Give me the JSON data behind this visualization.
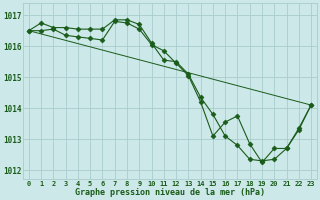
{
  "title": "Graphe pression niveau de la mer (hPa)",
  "bg_color": "#cce8e8",
  "grid_color": "#aacccc",
  "line_color": "#1a5c1a",
  "marker_color": "#1a5c1a",
  "x_ticks": [
    0,
    1,
    2,
    3,
    4,
    5,
    6,
    7,
    8,
    9,
    10,
    11,
    12,
    13,
    14,
    15,
    16,
    17,
    18,
    19,
    20,
    21,
    22,
    23
  ],
  "ylim": [
    1011.7,
    1017.4
  ],
  "yticks": [
    1012,
    1013,
    1014,
    1015,
    1016,
    1017
  ],
  "series": [
    {
      "x": [
        0,
        1,
        2,
        3,
        4,
        5,
        6,
        7,
        8,
        9,
        10,
        11,
        12,
        13,
        14,
        15,
        16,
        17,
        18,
        19,
        20,
        21,
        22,
        23
      ],
      "y": [
        1016.5,
        1016.75,
        1016.6,
        1016.6,
        1016.55,
        1016.55,
        1016.55,
        1016.85,
        1016.85,
        1016.7,
        1016.1,
        1015.55,
        1015.5,
        1015.1,
        1014.35,
        1013.8,
        1013.1,
        1012.8,
        1012.35,
        1012.3,
        1012.35,
        1012.7,
        1013.35,
        1014.1
      ],
      "marker": true,
      "linestyle": "-"
    },
    {
      "x": [
        0,
        1,
        2,
        3,
        4,
        5,
        6,
        7,
        8,
        9,
        10,
        11,
        12,
        13,
        14,
        15,
        16,
        17,
        18,
        19,
        20,
        21,
        22,
        23
      ],
      "y": [
        1016.5,
        1016.5,
        1016.55,
        1016.35,
        1016.3,
        1016.25,
        1016.2,
        1016.8,
        1016.75,
        1016.55,
        1016.05,
        1015.85,
        1015.45,
        1015.05,
        1014.2,
        1013.1,
        1013.55,
        1013.75,
        1012.85,
        1012.25,
        1012.7,
        1012.7,
        1013.3,
        1014.1
      ],
      "marker": true,
      "linestyle": "-"
    },
    {
      "x": [
        0,
        23
      ],
      "y": [
        1016.5,
        1014.1
      ],
      "marker": false,
      "linestyle": "-"
    }
  ]
}
